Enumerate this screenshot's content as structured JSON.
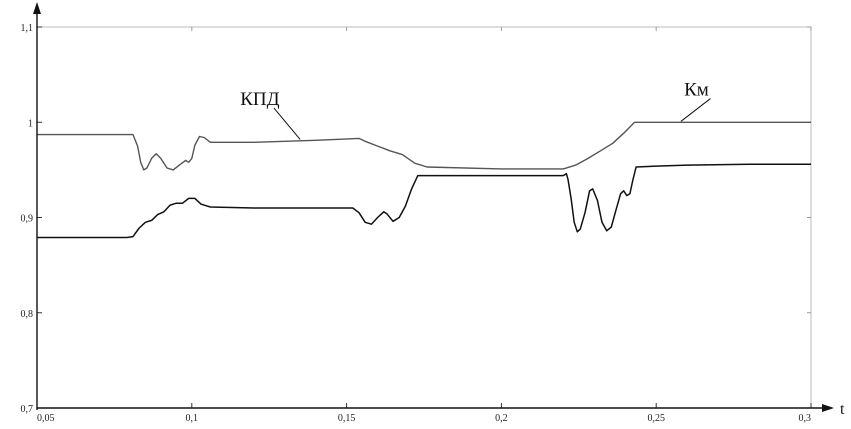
{
  "chart_data": {
    "type": "line",
    "title": "",
    "xlabel": "t",
    "ylabel": "",
    "xlim": [
      0.05,
      0.3
    ],
    "ylim": [
      0.7,
      1.1
    ],
    "grid": false,
    "x_ticks": [
      {
        "value": 0.05,
        "label": "0,05"
      },
      {
        "value": 0.1,
        "label": "0,1"
      },
      {
        "value": 0.15,
        "label": "0,15"
      },
      {
        "value": 0.2,
        "label": "0,2"
      },
      {
        "value": 0.25,
        "label": "0,25"
      },
      {
        "value": 0.3,
        "label": "0,3"
      }
    ],
    "y_ticks": [
      {
        "value": 0.7,
        "label": "0,7"
      },
      {
        "value": 0.8,
        "label": "0,8"
      },
      {
        "value": 0.9,
        "label": "0,9"
      },
      {
        "value": 1.0,
        "label": "1"
      },
      {
        "value": 1.1,
        "label": "1,1"
      }
    ],
    "series": [
      {
        "name": "КПД",
        "color": "#555555",
        "points": [
          [
            0.05,
            0.987
          ],
          [
            0.081,
            0.987
          ],
          [
            0.0825,
            0.975
          ],
          [
            0.0835,
            0.958
          ],
          [
            0.0845,
            0.95
          ],
          [
            0.0855,
            0.952
          ],
          [
            0.087,
            0.962
          ],
          [
            0.0885,
            0.967
          ],
          [
            0.09,
            0.962
          ],
          [
            0.092,
            0.952
          ],
          [
            0.094,
            0.95
          ],
          [
            0.096,
            0.955
          ],
          [
            0.098,
            0.96
          ],
          [
            0.099,
            0.958
          ],
          [
            0.1,
            0.962
          ],
          [
            0.101,
            0.976
          ],
          [
            0.1025,
            0.985
          ],
          [
            0.104,
            0.984
          ],
          [
            0.106,
            0.979
          ],
          [
            0.12,
            0.979
          ],
          [
            0.14,
            0.981
          ],
          [
            0.154,
            0.983
          ],
          [
            0.156,
            0.98
          ],
          [
            0.16,
            0.975
          ],
          [
            0.164,
            0.97
          ],
          [
            0.168,
            0.966
          ],
          [
            0.172,
            0.957
          ],
          [
            0.176,
            0.953
          ],
          [
            0.2,
            0.951
          ],
          [
            0.22,
            0.951
          ],
          [
            0.224,
            0.955
          ],
          [
            0.228,
            0.962
          ],
          [
            0.232,
            0.97
          ],
          [
            0.236,
            0.978
          ],
          [
            0.24,
            0.99
          ],
          [
            0.243,
            1.0
          ],
          [
            0.26,
            1.0
          ],
          [
            0.28,
            1.0
          ],
          [
            0.3,
            1.0
          ]
        ]
      },
      {
        "name": "Км",
        "color": "#111111",
        "points": [
          [
            0.05,
            0.879
          ],
          [
            0.079,
            0.879
          ],
          [
            0.081,
            0.88
          ],
          [
            0.083,
            0.889
          ],
          [
            0.085,
            0.895
          ],
          [
            0.087,
            0.897
          ],
          [
            0.089,
            0.903
          ],
          [
            0.091,
            0.906
          ],
          [
            0.093,
            0.913
          ],
          [
            0.095,
            0.915
          ],
          [
            0.097,
            0.915
          ],
          [
            0.099,
            0.92
          ],
          [
            0.101,
            0.92
          ],
          [
            0.103,
            0.914
          ],
          [
            0.106,
            0.911
          ],
          [
            0.12,
            0.91
          ],
          [
            0.152,
            0.91
          ],
          [
            0.154,
            0.905
          ],
          [
            0.156,
            0.895
          ],
          [
            0.158,
            0.893
          ],
          [
            0.16,
            0.9
          ],
          [
            0.162,
            0.906
          ],
          [
            0.163,
            0.904
          ],
          [
            0.165,
            0.896
          ],
          [
            0.167,
            0.9
          ],
          [
            0.169,
            0.912
          ],
          [
            0.171,
            0.93
          ],
          [
            0.173,
            0.944
          ],
          [
            0.176,
            0.944
          ],
          [
            0.2,
            0.944
          ],
          [
            0.22,
            0.944
          ],
          [
            0.221,
            0.946
          ],
          [
            0.2215,
            0.94
          ],
          [
            0.2225,
            0.92
          ],
          [
            0.2235,
            0.895
          ],
          [
            0.2245,
            0.885
          ],
          [
            0.2255,
            0.888
          ],
          [
            0.227,
            0.905
          ],
          [
            0.2285,
            0.928
          ],
          [
            0.2295,
            0.93
          ],
          [
            0.231,
            0.918
          ],
          [
            0.2325,
            0.895
          ],
          [
            0.234,
            0.886
          ],
          [
            0.2355,
            0.89
          ],
          [
            0.237,
            0.908
          ],
          [
            0.2385,
            0.925
          ],
          [
            0.2395,
            0.928
          ],
          [
            0.2405,
            0.923
          ],
          [
            0.2415,
            0.925
          ],
          [
            0.2425,
            0.94
          ],
          [
            0.2435,
            0.953
          ],
          [
            0.25,
            0.954
          ],
          [
            0.26,
            0.955
          ],
          [
            0.28,
            0.956
          ],
          [
            0.3,
            0.956
          ]
        ]
      }
    ],
    "annotations": [
      {
        "text": "КПД",
        "x": 0.122,
        "y": 1.018,
        "tx": 0.135,
        "ty": 0.982,
        "series": 0
      },
      {
        "text": "Км",
        "x": 0.263,
        "y": 1.028,
        "tx": 0.258,
        "ty": 1.001,
        "series": 1
      }
    ]
  }
}
